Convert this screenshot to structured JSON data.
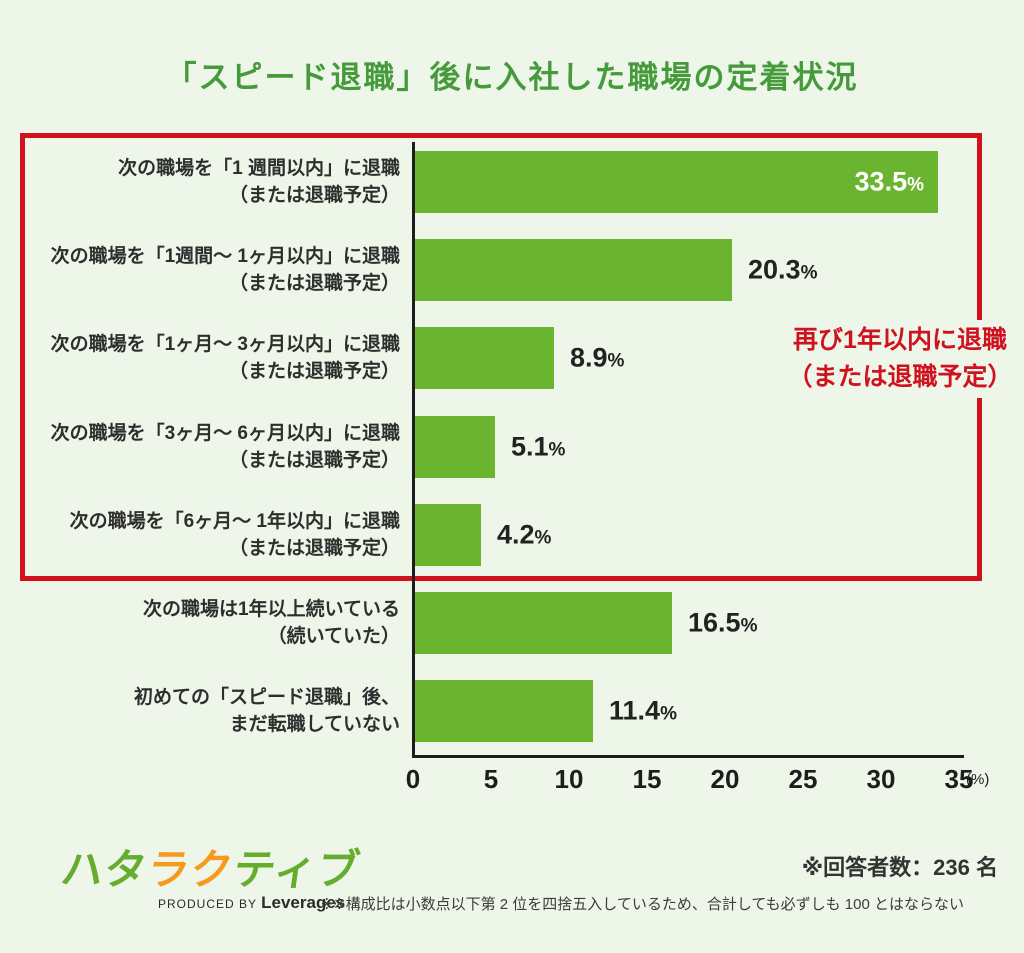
{
  "background_color": "#edf6e8",
  "title": {
    "text": "「スピード退職」後に入社した職場の定着状況",
    "color": "#459a3b"
  },
  "chart_data": {
    "type": "bar",
    "orientation": "horizontal",
    "title": "「スピード退職」後に入社した職場の定着状況",
    "xlim": [
      0,
      35
    ],
    "xlabel_unit": "(%)",
    "grid": false,
    "bar_color": "#6ab42f",
    "percent_sign": "%",
    "ticks": [
      "0",
      "5",
      "10",
      "15",
      "20",
      "25",
      "30",
      "35"
    ],
    "rows": [
      {
        "label_line1": "次の職場を「1 週間以内」に退職",
        "label_line2": "（または退職予定）",
        "value": 33.5,
        "value_label": "33.5",
        "value_inside": true
      },
      {
        "label_line1": "次の職場を「1週間〜 1ヶ月以内」に退職",
        "label_line2": "（または退職予定）",
        "value": 20.3,
        "value_label": "20.3",
        "value_inside": false
      },
      {
        "label_line1": "次の職場を「1ヶ月〜 3ヶ月以内」に退職",
        "label_line2": "（または退職予定）",
        "value": 8.9,
        "value_label": "8.9",
        "value_inside": false
      },
      {
        "label_line1": "次の職場を「3ヶ月〜 6ヶ月以内」に退職",
        "label_line2": "（または退職予定）",
        "value": 5.1,
        "value_label": "5.1",
        "value_inside": false
      },
      {
        "label_line1": "次の職場を「6ヶ月〜 1年以内」に退職",
        "label_line2": "（または退職予定）",
        "value": 4.2,
        "value_label": "4.2",
        "value_inside": false
      },
      {
        "label_line1": "次の職場は1年以上続いている",
        "label_line2": "（続いていた）",
        "value": 16.5,
        "value_label": "16.5",
        "value_inside": false
      },
      {
        "label_line1": "初めての「スピード退職」後、",
        "label_line2": "まだ転職していない",
        "value": 11.4,
        "value_label": "11.4",
        "value_inside": false
      }
    ]
  },
  "highlight": {
    "border_color": "#d0121f",
    "annotation_line1": "再び1年以内に退職",
    "annotation_line2": "（または退職予定）"
  },
  "footer": {
    "respondents": "※回答者数：236 名",
    "footnote": "※※構成比は小数点以下第 2 位を四捨五入しているため、合計しても必ずしも 100 とはならない",
    "logo": {
      "chars": [
        {
          "t": "ハ",
          "c": "#64ad2d"
        },
        {
          "t": "タ",
          "c": "#64ad2d"
        },
        {
          "t": "ラ",
          "c": "#f6991d"
        },
        {
          "t": "ク",
          "c": "#f6991d"
        },
        {
          "t": "テ",
          "c": "#64ad2d"
        },
        {
          "t": "ィ",
          "c": "#64ad2d"
        },
        {
          "t": "ブ",
          "c": "#64ad2d"
        }
      ],
      "produced_by": "PRODUCED BY",
      "company": "Leverages"
    }
  }
}
